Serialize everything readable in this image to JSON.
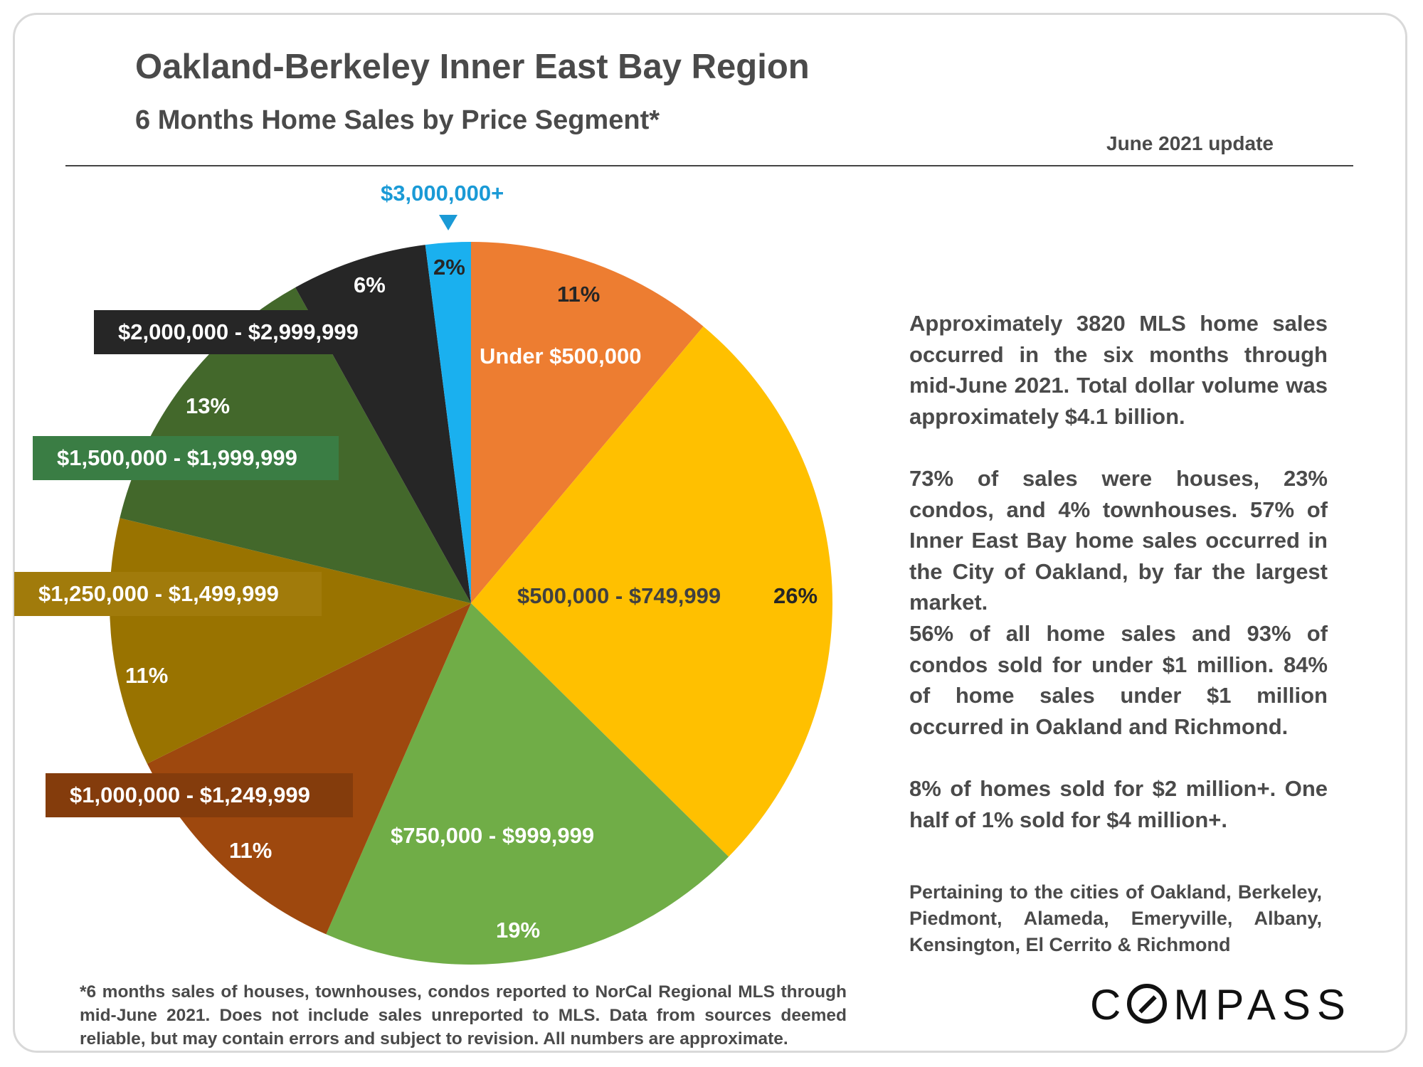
{
  "header": {
    "title": "Oakland-Berkeley Inner East Bay Region",
    "subtitle": "6 Months Home Sales by Price Segment*",
    "update": "June 2021 update"
  },
  "chart_data": {
    "type": "pie",
    "title": "6 Months Home Sales by Price Segment*",
    "categories": [
      "Under $500,000",
      "$500,000 - $749,999",
      "$750,000 - $999,999",
      "$1,000,000 - $1,249,999",
      "$1,250,000 - $1,499,999",
      "$1,500,000 - $1,999,999",
      "$2,000,000 - $2,999,999",
      "$3,000,000+"
    ],
    "values": [
      11,
      26,
      19,
      11,
      11,
      13,
      6,
      2
    ],
    "value_labels": [
      "11%",
      "26%",
      "19%",
      "11%",
      "11%",
      "13%",
      "6%",
      "2%"
    ],
    "colors": [
      "#ed7d31",
      "#ffc000",
      "#70ad47",
      "#9e480e",
      "#997300",
      "#43682b",
      "#262626",
      "#1ab0ef"
    ],
    "start_angle": "12 o'clock, clockwise"
  },
  "callouts": {
    "top": "$3,000,000+"
  },
  "side_text": {
    "para1": "Approximately 3820 MLS home sales occurred in the six months through mid-June 2021. Total dollar volume was approximately $4.1 billion.",
    "para2": "73% of sales were houses, 23% condos, and 4% townhouses. 57% of Inner East Bay home sales occurred in the City of Oakland, by far the largest market.",
    "para3": "56% of all home sales and 93% of condos sold for under $1 million. 84% of home sales under $1 million occurred in Oakland and Richmond.",
    "para4": "8% of homes sold for $2 million+. One half of 1% sold for $4 million+.",
    "cities": "Pertaining to the cities of Oakland, Berkeley, Piedmont, Alameda, Emeryville, Albany, Kensington, El Cerrito & Richmond"
  },
  "footnote": "*6 months sales of houses, townhouses, condos reported to NorCal Regional MLS through mid-June 2021. Does not include sales unreported to MLS. Data from sources deemed reliable, but may contain errors and subject to revision. All numbers are approximate.",
  "brand": {
    "logo_prefix": "C",
    "logo_suffix": "MPASS"
  }
}
